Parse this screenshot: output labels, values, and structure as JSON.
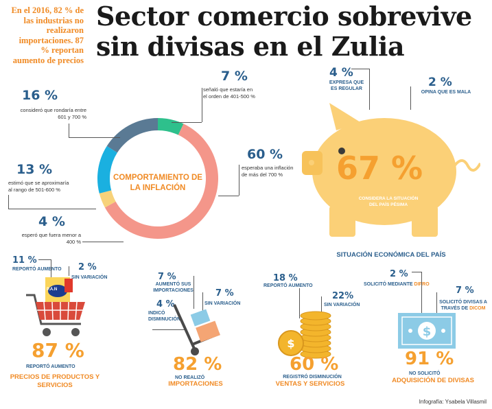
{
  "intro_text": "En el 2016, 82 % de las industrias no realizaron importaciones. 87 % reportan aumento de precios",
  "title": "Sector comercio sobrevive sin divisas en el Zulia",
  "inflation": {
    "center_label": "COMPORTAMIENTO DE LA INFLACIÓN",
    "items": [
      {
        "pct": "16 %",
        "text": "consideró que rondaría entre 601 y 700 %",
        "color": "#5a7a94"
      },
      {
        "pct": "7 %",
        "text": "señaló que estaría en el orden de 401-500 %",
        "color": "#2ec08c"
      },
      {
        "pct": "60 %",
        "text": "esperaba una inflación de más del 700 %",
        "color": "#f4968a"
      },
      {
        "pct": "4 %",
        "text": "esperó que fuera menor a 400 %",
        "color": "#f7d27a"
      },
      {
        "pct": "13 %",
        "text": "estimó que se aproximaría al rango de 501-600 %",
        "color": "#1ab0e0"
      }
    ],
    "chart_values": [
      16,
      7,
      60,
      4,
      13
    ]
  },
  "economy": {
    "big_pct": "67 %",
    "big_text": "CONSIDERA LA SITUACIÓN DEL PAÍS PÉSIMA",
    "regular_pct": "4 %",
    "regular_text": "EXPRESA QUE ES REGULAR",
    "bad_pct": "2 %",
    "bad_text": "OPINA QUE ES MALA",
    "caption": "SITUACIÓN ECONÓMICA DEL PAÍS"
  },
  "prices": {
    "up_pct": "11 %",
    "up_text": "REPORTÓ AUMENTO",
    "same_pct": "2 %",
    "same_text": "SIN VARIACIÓN",
    "big_pct": "87 %",
    "big_text": "REPORTÓ AUMENTO",
    "caption": "PRECIOS DE PRODUCTOS Y SERVICIOS",
    "box_label": "P.A.N"
  },
  "imports": {
    "up_pct": "7 %",
    "up_text": "AUMENTÓ SUS IMPORTACIONES",
    "down_pct": "4 %",
    "down_text": "INDICÓ DISMINUCIÓN",
    "same_pct": "7 %",
    "same_text": "SIN VARIACIÓN",
    "big_pct": "82 %",
    "big_text": "NO REALIZÓ",
    "caption": "IMPORTACIONES"
  },
  "sales": {
    "up_pct": "18 %",
    "up_text": "REPORTÓ AUMENTO",
    "same_pct": "22%",
    "same_text": "SIN VARIACIÓN",
    "big_pct": "60 %",
    "big_text": "REGISTRÓ DISMINUCIÓN",
    "caption": "VENTAS Y SERVICIOS"
  },
  "currency": {
    "dipro_pct": "2 %",
    "dipro_text": "SOLICITÓ MEDIANTE",
    "dipro_name": "DIPRO",
    "dicom_pct": "7 %",
    "dicom_text": "SOLICITÓ DIVISAS A TRAVÉS DE",
    "dicom_name": "DICOM",
    "big_pct": "91 %",
    "big_text": "NO SOLICITÓ",
    "caption": "ADQUISICIÓN DE DIVISAS"
  },
  "credit": "Infografía: Ysabela Villasmil"
}
